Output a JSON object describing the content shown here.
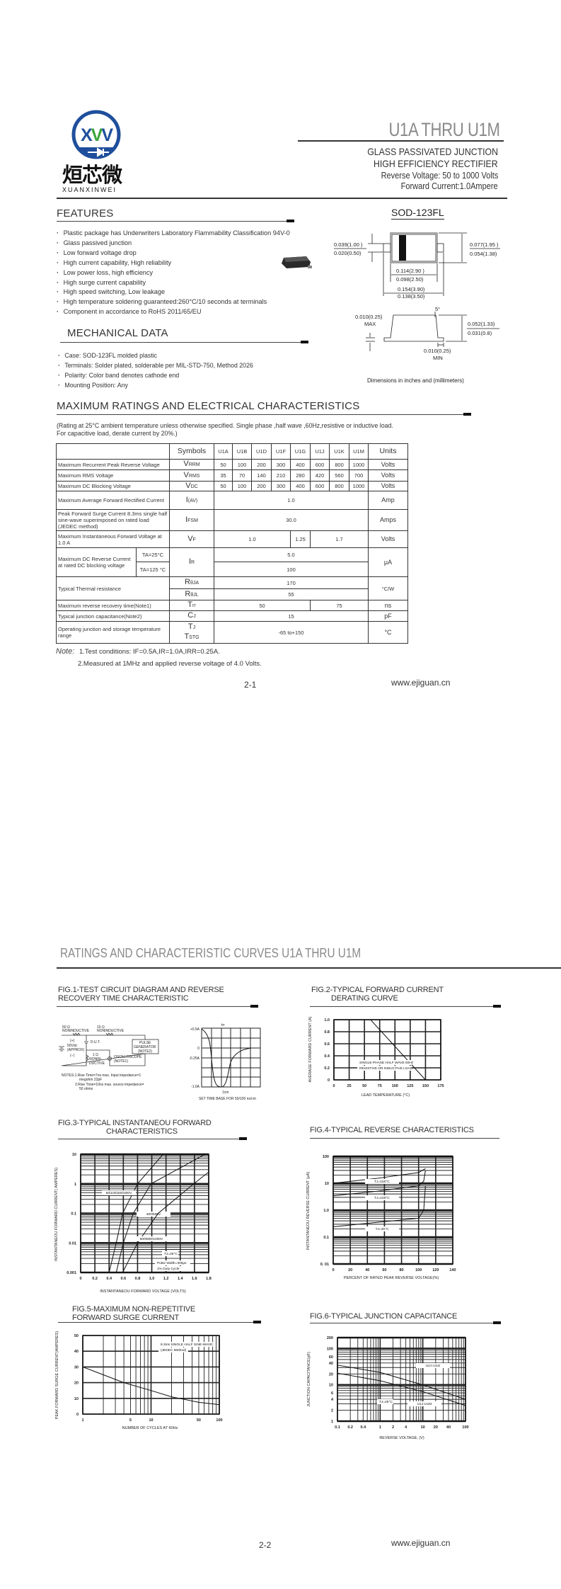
{
  "brand": {
    "logo_letters": "XVV",
    "name_cn": "烜芯微",
    "name_en": "XUANXINWEI",
    "colors": {
      "blue": "#1f4f9c",
      "green": "#3aa63a"
    }
  },
  "header": {
    "title": "U1A THRU U1M",
    "subtitle1": "GLASS PASSIVATED JUNCTION",
    "subtitle2": "HIGH EFFICIENCY RECTIFIER",
    "subtitle3": "Reverse Voltage: 50 to 1000 Volts",
    "subtitle4": "Forward Current:1.0Ampere"
  },
  "features": {
    "heading": "FEATURES",
    "items": [
      "Plastic package has Underwriters Laboratory Flammability Classification 94V-0",
      "Glass passived junction",
      "Low forward voltage drop",
      "High current capability, High reliability",
      "Low power loss, high efficiency",
      "High surge current capability",
      "High speed switching, Low leakage",
      "High temperature soldering guaranteed:260°C/10 seconds at terminals",
      "Component in accordance to RoHS 2011/65/EU"
    ]
  },
  "mechanical": {
    "heading": "MECHANICAL DATA",
    "items": [
      "Case:  SOD-123FL molded plastic",
      "Terminals: Solder plated, solderable per MIL-STD-750, Method 2026",
      "Polarity: Color band denotes cathode end",
      "Mounting Position:  Any"
    ]
  },
  "package": {
    "title": "SOD-123FL",
    "dims": {
      "lead_h_max": "0.039(1.00 )",
      "lead_h_min": "0.020(0.50)",
      "body_h_max": "0.077(1.95 )",
      "body_h_min": "0.054(1.38)",
      "body_l_max": "0.114(2.90 )",
      "body_l_min": "0.098(2.50)",
      "total_l_max": "0.154(3.90)",
      "total_l_min": "0.138(3.50)",
      "angle": "5°",
      "lead_t": "0.010(0.25)",
      "lead_t_note": "MAX",
      "height_max": "0.052(1.33)",
      "height_min": "0.031(0.8)",
      "foot": "0.010(0.25)",
      "foot_note": "MIN"
    },
    "caption": "Dimensions in inches and (millimeters)"
  },
  "ratings": {
    "heading": "MAXIMUM RATINGS AND ELECTRICAL CHARACTERISTICS",
    "note": "(Rating at 25°C ambient temperature unless otherwise specified. Single phase ,half wave ,60Hz,resistive or inductive load. For capacitive load, derate current by 20%.)",
    "header": {
      "symbols": "Symbols",
      "parts": [
        "U1A",
        "U1B",
        "U1D",
        "U1F",
        "U1G",
        "U1J",
        "U1K",
        "U1M"
      ],
      "units": "Units"
    },
    "rows": [
      {
        "label": "Maximum Recurrent Peak Reverse Voltage",
        "sym": "V",
        "sub": "RRM",
        "values": [
          "50",
          "100",
          "200",
          "300",
          "400",
          "600",
          "800",
          "1000"
        ],
        "unit": "Volts"
      },
      {
        "label": "Maximum RMS Voltage",
        "sym": "V",
        "sub": "RMS",
        "values": [
          "35",
          "70",
          "140",
          "210",
          "280",
          "420",
          "560",
          "700"
        ],
        "unit": "Volts"
      },
      {
        "label": "Maximum DC Blocking Voltage",
        "sym": "V",
        "sub": "DC",
        "values": [
          "50",
          "100",
          "200",
          "300",
          "400",
          "600",
          "800",
          "1000"
        ],
        "unit": "Volts"
      },
      {
        "label": "Maximum Average Forward Rectified Current",
        "sym": "I",
        "sub": "(AV)",
        "values": [
          "1.0"
        ],
        "unit": "Amp"
      },
      {
        "label": "Peak Forward Surge Current 8.3ms single half sine-wave superimposed on rated load (JEDEC method)",
        "sym": "I",
        "sub": "FSM",
        "values": [
          "30.0"
        ],
        "unit": "Amps"
      },
      {
        "label": "Maximum Instantaneous Forward Voltage at 1.0 A",
        "sym": "V",
        "sub": "F",
        "values": [
          "1.0",
          "1.25",
          "1.7"
        ],
        "unit": "Volts"
      },
      {
        "label": "Maximum DC Reverse Current at rated DC blocking voltage",
        "conds": [
          "TA=25°C",
          "TA=125 °C"
        ],
        "sym": "I",
        "sub": "R",
        "values": [
          "5.0",
          "100"
        ],
        "unit": "μA"
      },
      {
        "label": "Typical Thermal resistance",
        "syms": [
          {
            "sym": "R",
            "sub": "θJA"
          },
          {
            "sym": "R",
            "sub": "θJL"
          }
        ],
        "values": [
          "170",
          "55"
        ],
        "unit": "°C/W"
      },
      {
        "label": "Maximum reverse recovery time(Note1)",
        "sym": "T",
        "sub": "rr",
        "values": [
          "50",
          "75"
        ],
        "unit": "ns"
      },
      {
        "label": "Typical junction capacitance(Note2)",
        "sym": "C",
        "sub": "J",
        "values": [
          "15"
        ],
        "unit": "pF"
      },
      {
        "label": "Operating junction and storage temperature range",
        "syms": [
          {
            "sym": "T",
            "sub": "J"
          },
          {
            "sym": "T",
            "sub": "STG"
          }
        ],
        "values": [
          "-65 to+150"
        ],
        "unit": "°C"
      }
    ],
    "notes_label": "Note:",
    "note1": "1.Test conditions: IF=0.5A,IR=1.0A,IRR=0.25A.",
    "note2": "2.Measured at 1MHz and applied reverse voltage of 4.0 Volts."
  },
  "footer1": {
    "page": "2-1",
    "site": "www.ejiguan.cn"
  },
  "page2": {
    "title": "RATINGS AND CHARACTERISTIC CURVES U1A THRU U1M"
  },
  "fig1": {
    "title1": "FIG.1-TEST CIRCUIT DIAGRAM AND REVERSE",
    "title2": "RECOVERY TIME CHARACTERISTIC",
    "r1": "50 Ω",
    "r1_note": "NONINDUCTIVE",
    "r2": "10 Ω",
    "r2_note": "NONINDUCTIVE",
    "plus": "(+)",
    "supply1": "50Vdc",
    "supply2": "(APPROX)",
    "minus": "(−)",
    "dut": "D.U.T.",
    "pulse1": "PULSE",
    "pulse2": "GENERATOR",
    "pulse3": "(NOTE2)",
    "r3": "1 Ω",
    "r3_note1": "NONIN-",
    "r3_note2": "DUCTIVE",
    "scope1": "OSCILLOSCOPE",
    "scope2": "(NOTE1)",
    "notes1": "NOTES:1.Rise Time=7ns max. Input impedance=1",
    "notes1b": "megohm 22pF",
    "notes2": "2.Rise Time=10ns max. source impedance=",
    "notes2b": "50 ohms",
    "wave_labels": [
      "+0.5A",
      "0",
      "-0.25A",
      "-1.0A"
    ],
    "trr": "trr",
    "cm": "1cm",
    "timebase": "SET TIME BASE FOR 50/100 ns/cm"
  },
  "chart_data": [
    {
      "type": "line",
      "title": "FIG.2-TYPICAL FORWARD CURRENT",
      "title2": "DERATING CURVE",
      "xlabel": "LEAD TEMPERATURE (°C)",
      "ylabel": "AVERAGE FORWARD CURRENT (A)",
      "xlim": [
        0,
        175
      ],
      "ylim": [
        0,
        1.0
      ],
      "xscale": "linear",
      "yscale": "linear",
      "grid": true,
      "xticks": [
        0,
        25,
        50,
        75,
        100,
        125,
        150,
        175
      ],
      "xticklabels": [
        "0",
        "25",
        "50",
        "75",
        "100",
        "125",
        "150",
        "175"
      ],
      "yticks": [
        0,
        0.2,
        0.4,
        0.6,
        0.8,
        1.0
      ],
      "yticklabels": [
        "0",
        "0.2",
        "0.4",
        "0.6",
        "0.8",
        "1.0"
      ],
      "annotations": [
        "SINGLE PHASE HALF WAVE 60Hz",
        "RESISTIVE OR INDUCTIVE LOAD"
      ],
      "series": [
        {
          "points": [
            [
              0,
              1.0
            ],
            [
              60,
              1.0
            ],
            [
              150,
              0
            ]
          ]
        }
      ]
    },
    {
      "type": "line",
      "title": "FIG.3-TYPICAL INSTANTANEOU FORWARD",
      "title2": "CHARACTERISTICS",
      "xlabel": "INSTANTANEOU FORWARD VOLTAGE (VOLTS)",
      "ylabel": "INSTANTANEOU FORWARD CURRENT( AMPERES)",
      "xlim": [
        0,
        1.8
      ],
      "ylim": [
        0.001,
        10
      ],
      "xscale": "linear",
      "yscale": "log",
      "grid": true,
      "xticks": [
        0,
        0.2,
        0.4,
        0.6,
        0.8,
        1.0,
        1.2,
        1.4,
        1.6,
        1.8
      ],
      "xticklabels": [
        "0",
        "0.2",
        "0.4",
        "0.6",
        "0.8",
        "1.0",
        "1.2",
        "1.4",
        "1.6",
        "1.8"
      ],
      "yticks": [
        0.001,
        0.01,
        0.1,
        1,
        10
      ],
      "yticklabels": [
        "0.001",
        "0.01",
        "0.1",
        "1",
        "10"
      ],
      "annotations": [
        "TJ=25°C",
        "Pulse Width=300μs",
        "1% Duty Cycle"
      ],
      "series": [
        {
          "name": "50\\100\\200\\300V",
          "points": [
            [
              0.4,
              0.001
            ],
            [
              0.5,
              0.01
            ],
            [
              0.59,
              0.1
            ],
            [
              0.8,
              1
            ],
            [
              1.16,
              10
            ]
          ]
        },
        {
          "name": "400\\500V",
          "points": [
            [
              0.5,
              0.001
            ],
            [
              0.6,
              0.01
            ],
            [
              0.74,
              0.1
            ],
            [
              0.99,
              1
            ],
            [
              1.75,
              10
            ]
          ]
        },
        {
          "name": "600\\800\\1000V",
          "points": [
            [
              0.59,
              0.001
            ],
            [
              0.8,
              0.01
            ],
            [
              1.09,
              0.1
            ],
            [
              1.59,
              1
            ],
            [
              1.8,
              2.5
            ]
          ]
        }
      ]
    },
    {
      "type": "line",
      "title": "FIG.4-TYPICAL REVERSE CHARACTERISTICS",
      "xlabel": "PERCENT OF RATED PEAK REVERSE VOLTAGE(%)",
      "ylabel": "INSTANTANEOU REVERSE CURRENT (μA)",
      "xlim": [
        0,
        140
      ],
      "ylim": [
        0.01,
        100
      ],
      "xscale": "linear",
      "yscale": "log",
      "grid": true,
      "xticks": [
        0,
        20,
        40,
        60,
        80,
        100,
        120,
        140
      ],
      "xticklabels": [
        "0",
        "20",
        "40",
        "60",
        "80",
        "100",
        "120",
        "140"
      ],
      "yticks": [
        0.01,
        0.1,
        1,
        10,
        100
      ],
      "yticklabels": [
        "0. 01",
        "0.1",
        "1.0",
        "10",
        "100"
      ],
      "series": [
        {
          "name": "TJ=150°C",
          "points": [
            [
              0,
              10
            ],
            [
              50,
              15
            ],
            [
              100,
              25
            ],
            [
              108,
              35
            ]
          ]
        },
        {
          "name": "TJ=100°C",
          "points": [
            [
              0,
              3.4
            ],
            [
              50,
              5
            ],
            [
              100,
              8
            ],
            [
              106,
              12
            ],
            [
              108,
              30
            ]
          ]
        },
        {
          "name": "TJ=25°C",
          "points": [
            [
              0,
              0.24
            ],
            [
              50,
              0.35
            ],
            [
              100,
              0.5
            ],
            [
              106,
              1
            ],
            [
              108,
              8
            ]
          ]
        }
      ]
    },
    {
      "type": "line",
      "title": "FIG.5-MAXIMUM NON-REPETITIVE",
      "title2": "FORWARD SURGE CURRENT",
      "xlabel": "NUMBER OF CYCLES AT 60Hz",
      "ylabel": "PEAK FORWARD SURGE CURRENT(AMPERES)",
      "xlim": [
        1,
        100
      ],
      "ylim": [
        0,
        50
      ],
      "xscale": "log",
      "yscale": "linear",
      "grid": true,
      "xticks": [
        1,
        5,
        10,
        50,
        100
      ],
      "xticklabels": [
        "1",
        "5",
        "10",
        "50",
        "100"
      ],
      "yticks": [
        0,
        10,
        20,
        30,
        40,
        50
      ],
      "yticklabels": [
        "0",
        "10",
        "20",
        "30",
        "40",
        "50"
      ],
      "annotations": [
        "8.3ms SINGLE HALF SINE-WAVE",
        "(JEDEC Method)"
      ],
      "series": [
        {
          "points": [
            [
              1,
              30
            ],
            [
              2,
              25
            ],
            [
              4,
              20
            ],
            [
              10,
              15
            ],
            [
              20,
              11
            ],
            [
              50,
              7.5
            ],
            [
              100,
              6
            ]
          ]
        }
      ]
    },
    {
      "type": "line",
      "title": "FIG.6-TYPICAL JUNCTION CAPACITANCE",
      "xlabel": "REVERSE VOLTAGE, (V)",
      "ylabel": "JUNCTION CAPACITANCE(pF)",
      "xlim": [
        0.1,
        100
      ],
      "ylim": [
        1,
        200
      ],
      "xscale": "log",
      "yscale": "log",
      "grid": true,
      "xticks": [
        0.1,
        0.2,
        0.4,
        1,
        2,
        4,
        10,
        20,
        40,
        100
      ],
      "xticklabels": [
        "0.1",
        "0.2",
        "0.4",
        "1",
        "2",
        "4",
        "10",
        "20",
        "40",
        "100"
      ],
      "yticks": [
        1,
        2,
        4,
        6,
        10,
        20,
        40,
        60,
        100,
        200
      ],
      "yticklabels": [
        "1",
        "2",
        "4",
        "6",
        "10",
        "20",
        "40",
        "60",
        "100",
        "200"
      ],
      "annotations": [
        "TJ=25°C"
      ],
      "series": [
        {
          "name": "U1A-U1G",
          "points": [
            [
              0.1,
              35
            ],
            [
              1,
              22
            ],
            [
              10,
              10
            ],
            [
              100,
              4
            ]
          ]
        },
        {
          "name": "U1J-U1M",
          "points": [
            [
              0.1,
              21
            ],
            [
              1,
              13
            ],
            [
              10,
              6.5
            ],
            [
              100,
              2.7
            ]
          ]
        }
      ]
    }
  ],
  "footer2": {
    "page": "2-2",
    "site": "www.ejiguan.cn"
  }
}
